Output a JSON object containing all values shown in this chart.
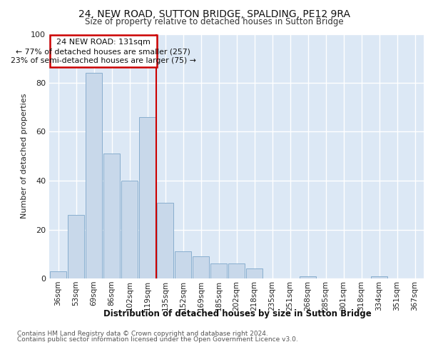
{
  "title1": "24, NEW ROAD, SUTTON BRIDGE, SPALDING, PE12 9RA",
  "title2": "Size of property relative to detached houses in Sutton Bridge",
  "xlabel": "Distribution of detached houses by size in Sutton Bridge",
  "ylabel": "Number of detached properties",
  "categories": [
    "36sqm",
    "53sqm",
    "69sqm",
    "86sqm",
    "102sqm",
    "119sqm",
    "135sqm",
    "152sqm",
    "169sqm",
    "185sqm",
    "202sqm",
    "218sqm",
    "235sqm",
    "251sqm",
    "268sqm",
    "285sqm",
    "301sqm",
    "318sqm",
    "334sqm",
    "351sqm",
    "367sqm"
  ],
  "values": [
    3,
    26,
    84,
    51,
    40,
    66,
    31,
    11,
    9,
    6,
    6,
    4,
    0,
    0,
    1,
    0,
    0,
    0,
    1,
    0,
    0
  ],
  "bar_color": "#c8d8ea",
  "bar_edge_color": "#88aece",
  "vline_index": 6,
  "annotation_line1": "24 NEW ROAD: 131sqm",
  "annotation_line2": "← 77% of detached houses are smaller (257)",
  "annotation_line3": "23% of semi-detached houses are larger (75) →",
  "box_color": "#cc0000",
  "ylim": [
    0,
    100
  ],
  "yticks": [
    0,
    20,
    40,
    60,
    80,
    100
  ],
  "footnote1": "Contains HM Land Registry data © Crown copyright and database right 2024.",
  "footnote2": "Contains public sector information licensed under the Open Government Licence v3.0.",
  "bg_color": "#ffffff",
  "plot_bg_color": "#dce8f5"
}
